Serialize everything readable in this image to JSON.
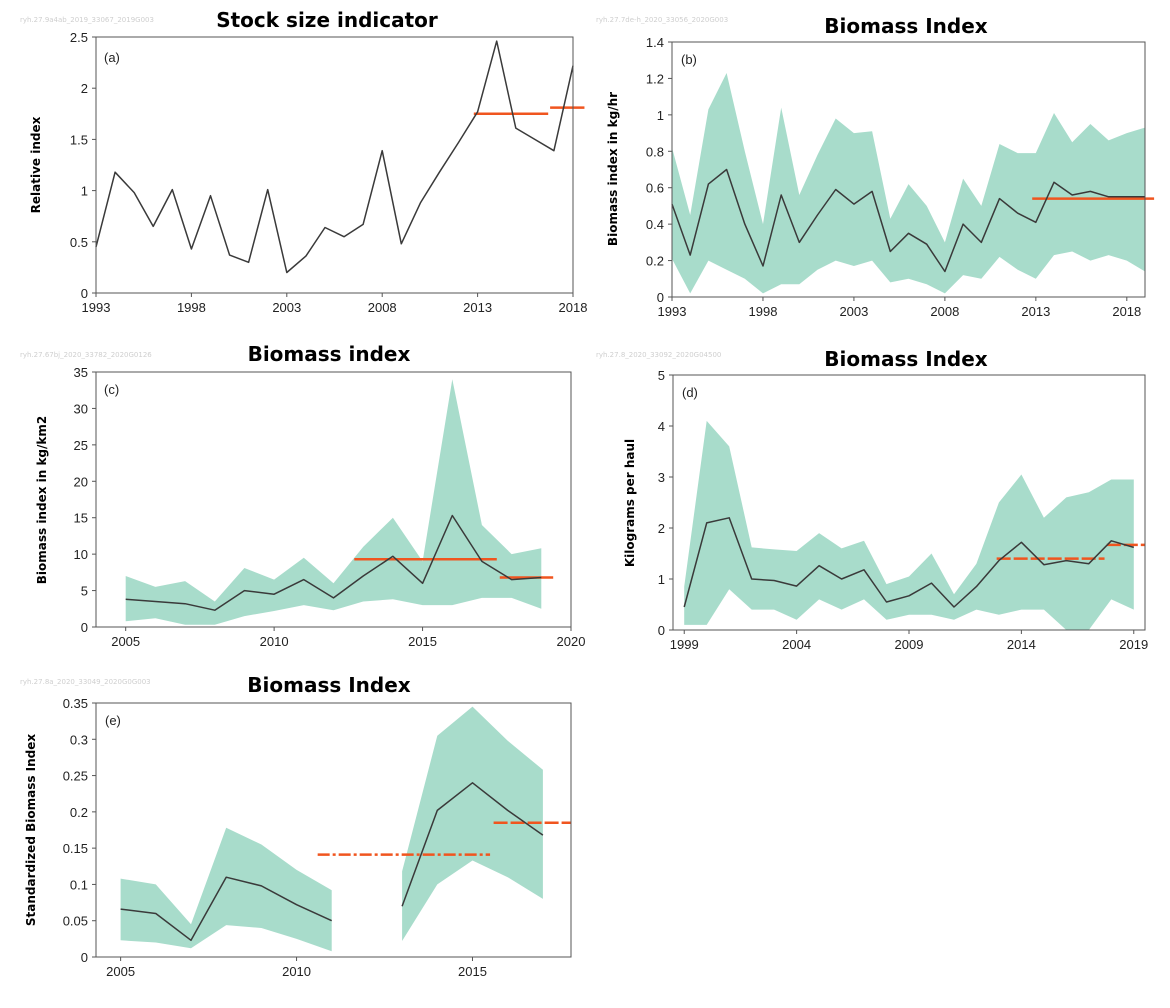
{
  "colors": {
    "band": "#a8dccb",
    "line": "#3a3a3a",
    "ref": "#f0551f",
    "axis": "#555555"
  },
  "chart_data": [
    {
      "id": "a",
      "type": "line",
      "title": "Stock size indicator",
      "panel_label": "(a)",
      "watermark": "ryh.27.9a4ab_2019_33067_2019G003",
      "ylabel": "Relative index",
      "xlabel": "",
      "xlim": [
        1993,
        2018
      ],
      "ylim": [
        0,
        2.5
      ],
      "xticks": [
        1993,
        1998,
        2003,
        2008,
        2013,
        2018
      ],
      "yticks": [
        0,
        0.5,
        1,
        1.5,
        2,
        2.5
      ],
      "ytick_labels": [
        "0",
        "0.5",
        "1",
        "1.5",
        "2",
        "2.5"
      ],
      "x": [
        1993,
        1994,
        1995,
        1996,
        1997,
        1998,
        1999,
        2000,
        2001,
        2002,
        2003,
        2004,
        2005,
        2006,
        2007,
        2008,
        2009,
        2010,
        2011,
        2012,
        2013,
        2014,
        2015,
        2016,
        2017,
        2018
      ],
      "y": [
        0.45,
        1.18,
        0.98,
        0.65,
        1.01,
        0.43,
        0.95,
        0.37,
        0.3,
        1.01,
        0.2,
        0.36,
        0.64,
        0.55,
        0.67,
        1.39,
        0.48,
        0.88,
        1.18,
        1.47,
        1.77,
        2.46,
        1.61,
        1.5,
        1.39,
        2.22
      ],
      "reference_lines": [
        {
          "x0": 2012.8,
          "x1": 2016.7,
          "y": 1.75,
          "style": "solid"
        },
        {
          "x0": 2016.8,
          "x1": 2018.8,
          "y": 1.81,
          "style": "solid"
        }
      ]
    },
    {
      "id": "b",
      "type": "area",
      "title": "Biomass Index",
      "panel_label": "(b)",
      "watermark": "ryh.27.7de-h_2020_33056_2020G003",
      "ylabel": "Biomass index in kg/hr",
      "xlabel": "",
      "xlim": [
        1993,
        2019
      ],
      "ylim": [
        0,
        1.4
      ],
      "xticks": [
        1993,
        1998,
        2003,
        2008,
        2013,
        2018
      ],
      "yticks": [
        0,
        0.2,
        0.4,
        0.6,
        0.8,
        1,
        1.2,
        1.4
      ],
      "ytick_labels": [
        "0",
        "0.2",
        "0.4",
        "0.6",
        "0.8",
        "1",
        "1.2",
        "1.4"
      ],
      "x": [
        1993,
        1994,
        1995,
        1996,
        1997,
        1998,
        1999,
        2000,
        2001,
        2002,
        2003,
        2004,
        2005,
        2006,
        2007,
        2008,
        2009,
        2010,
        2011,
        2012,
        2013,
        2014,
        2015,
        2016,
        2017,
        2018,
        2019
      ],
      "y": [
        0.51,
        0.23,
        0.62,
        0.7,
        0.4,
        0.17,
        0.56,
        0.3,
        0.45,
        0.59,
        0.51,
        0.58,
        0.25,
        0.35,
        0.29,
        0.14,
        0.4,
        0.3,
        0.54,
        0.46,
        0.41,
        0.63,
        0.56,
        0.58,
        0.55,
        0.55,
        0.55
      ],
      "lower": [
        0.21,
        0.02,
        0.2,
        0.15,
        0.1,
        0.02,
        0.07,
        0.07,
        0.15,
        0.2,
        0.17,
        0.2,
        0.08,
        0.1,
        0.07,
        0.02,
        0.12,
        0.1,
        0.22,
        0.15,
        0.1,
        0.23,
        0.25,
        0.2,
        0.23,
        0.2,
        0.14
      ],
      "upper": [
        0.82,
        0.45,
        1.03,
        1.23,
        0.8,
        0.4,
        1.04,
        0.56,
        0.78,
        0.98,
        0.9,
        0.91,
        0.43,
        0.62,
        0.5,
        0.3,
        0.65,
        0.5,
        0.84,
        0.79,
        0.79,
        1.01,
        0.85,
        0.95,
        0.86,
        0.9,
        0.93
      ],
      "reference_lines": [
        {
          "x0": 2012.8,
          "x1": 2019.5,
          "y": 0.54,
          "style": "solid"
        }
      ]
    },
    {
      "id": "c",
      "type": "area",
      "title": "Biomass index",
      "panel_label": "(c)",
      "watermark": "ryh.27.67bj_2020_33782_2020G0126",
      "ylabel": "Biomass index in kg/km2",
      "xlabel": "",
      "xlim": [
        2004,
        2020
      ],
      "ylim": [
        0,
        35
      ],
      "xticks": [
        2005,
        2010,
        2015,
        2020
      ],
      "yticks": [
        0,
        5,
        10,
        15,
        20,
        25,
        30,
        35
      ],
      "ytick_labels": [
        "0",
        "5",
        "10",
        "15",
        "20",
        "25",
        "30",
        "35"
      ],
      "x": [
        2005,
        2006,
        2007,
        2008,
        2009,
        2010,
        2011,
        2012,
        2013,
        2014,
        2015,
        2016,
        2017,
        2018,
        2019
      ],
      "y": [
        3.8,
        3.5,
        3.2,
        2.3,
        5.0,
        4.5,
        6.5,
        4.0,
        7.0,
        9.7,
        6.0,
        15.3,
        9.0,
        6.5,
        6.8
      ],
      "lower": [
        0.8,
        1.2,
        0.3,
        0.3,
        1.5,
        2.2,
        3.0,
        2.3,
        3.5,
        3.8,
        3.0,
        3.0,
        4.0,
        4.0,
        2.5
      ],
      "upper": [
        7.0,
        5.5,
        6.3,
        3.5,
        8.1,
        6.5,
        9.5,
        6.0,
        11.0,
        15.0,
        9.0,
        34.0,
        14.0,
        10.0,
        10.8
      ],
      "reference_lines": [
        {
          "x0": 2012.7,
          "x1": 2017.5,
          "y": 9.3,
          "style": "solid"
        },
        {
          "x0": 2017.6,
          "x1": 2019.4,
          "y": 6.8,
          "style": "solid"
        }
      ]
    },
    {
      "id": "d",
      "type": "area",
      "title": "Biomass Index",
      "panel_label": "(d)",
      "watermark": "ryh.27.8_2020_33092_2020G04500",
      "ylabel": "Kilograms per haul",
      "xlabel": "",
      "xlim": [
        1998.5,
        2019.5
      ],
      "ylim": [
        0,
        5
      ],
      "xticks": [
        1999,
        2004,
        2009,
        2014,
        2019
      ],
      "yticks": [
        0,
        1,
        2,
        3,
        4,
        5
      ],
      "ytick_labels": [
        "0",
        "1",
        "2",
        "3",
        "4",
        "5"
      ],
      "x": [
        1999,
        2000,
        2001,
        2002,
        2003,
        2004,
        2005,
        2006,
        2007,
        2008,
        2009,
        2010,
        2011,
        2012,
        2013,
        2014,
        2015,
        2016,
        2017,
        2018,
        2019
      ],
      "y": [
        0.45,
        2.1,
        2.2,
        1.0,
        0.97,
        0.86,
        1.26,
        1.0,
        1.18,
        0.55,
        0.67,
        0.92,
        0.45,
        0.85,
        1.36,
        1.72,
        1.28,
        1.36,
        1.3,
        1.75,
        1.62
      ],
      "lower": [
        0.1,
        0.1,
        0.8,
        0.4,
        0.4,
        0.2,
        0.6,
        0.4,
        0.6,
        0.2,
        0.3,
        0.3,
        0.2,
        0.4,
        0.3,
        0.4,
        0.4,
        0.0,
        0.0,
        0.6,
        0.4
      ],
      "upper": [
        0.85,
        4.1,
        3.6,
        1.62,
        1.58,
        1.55,
        1.9,
        1.6,
        1.75,
        0.9,
        1.05,
        1.5,
        0.7,
        1.3,
        2.5,
        3.05,
        2.2,
        2.6,
        2.7,
        2.95,
        2.95
      ],
      "reference_lines": [
        {
          "x0": 2012.9,
          "x1": 2017.7,
          "y": 1.4,
          "style": "dashed"
        },
        {
          "x0": 2017.8,
          "x1": 2019.5,
          "y": 1.67,
          "style": "dashed"
        }
      ]
    },
    {
      "id": "e",
      "type": "area",
      "title": "Biomass Index",
      "panel_label": "(e)",
      "watermark": "ryh.27.8a_2020_33049_2020G0G003",
      "ylabel": "Standardized Biomass Index",
      "xlabel": "",
      "xlim": [
        2004.3,
        2017.8
      ],
      "ylim": [
        0,
        0.35
      ],
      "xticks": [
        2005,
        2010,
        2015
      ],
      "yticks": [
        0,
        0.05,
        0.1,
        0.15,
        0.2,
        0.25,
        0.3,
        0.35
      ],
      "ytick_labels": [
        "0",
        "0.05",
        "0.1",
        "0.15",
        "0.2",
        "0.25",
        "0.3",
        "0.35"
      ],
      "segments": [
        {
          "x": [
            2005,
            2006,
            2007,
            2008,
            2009,
            2010,
            2011
          ],
          "y": [
            0.066,
            0.06,
            0.023,
            0.11,
            0.098,
            0.072,
            0.05
          ],
          "lower": [
            0.023,
            0.02,
            0.012,
            0.044,
            0.04,
            0.025,
            0.008
          ],
          "upper": [
            0.108,
            0.1,
            0.045,
            0.178,
            0.155,
            0.12,
            0.092
          ]
        },
        {
          "x": [
            2013,
            2014,
            2015,
            2016,
            2017
          ],
          "y": [
            0.07,
            0.202,
            0.24,
            0.202,
            0.168
          ],
          "lower": [
            0.022,
            0.1,
            0.133,
            0.11,
            0.08
          ],
          "upper": [
            0.118,
            0.305,
            0.345,
            0.298,
            0.258
          ]
        }
      ],
      "reference_lines": [
        {
          "x0": 2010.6,
          "x1": 2015.5,
          "y": 0.141,
          "style": "dashdot"
        },
        {
          "x0": 2015.6,
          "x1": 2017.8,
          "y": 0.185,
          "style": "dashed"
        }
      ]
    }
  ]
}
